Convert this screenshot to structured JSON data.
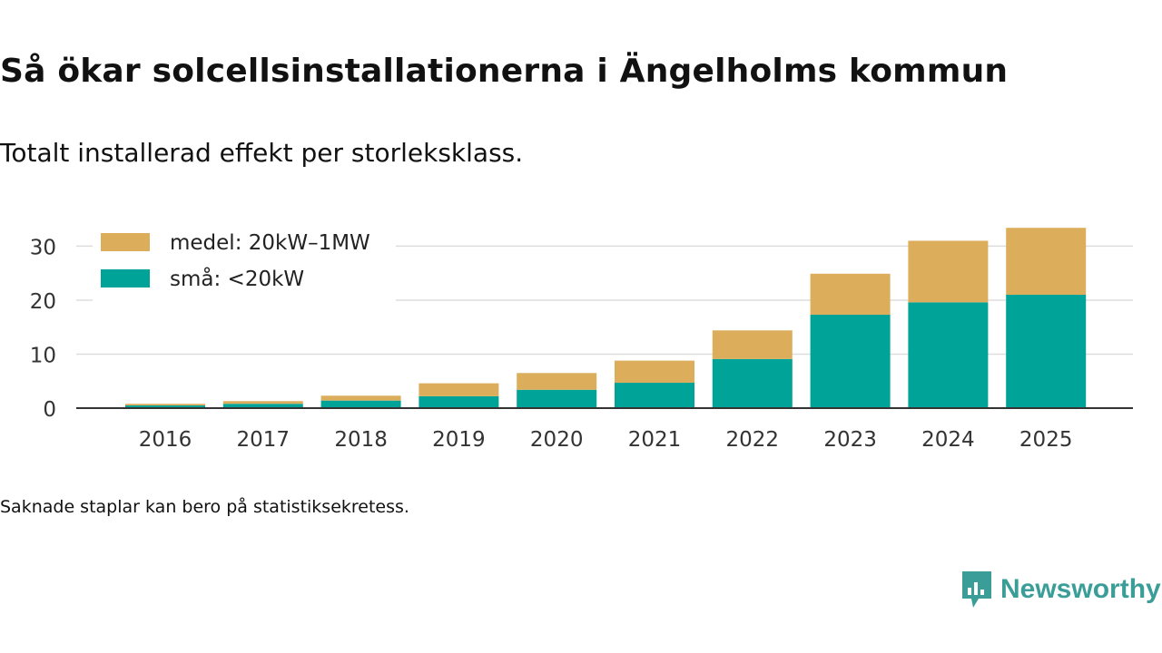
{
  "header": {
    "title": "Så ökar solcellsinstallationerna i Ängelholms kommun",
    "subtitle": "Totalt installerad effekt per storleksklass."
  },
  "footer": {
    "note": "Saknade staplar kan bero på statistiksekretess.",
    "brand": "Newsworthy"
  },
  "colors": {
    "medel": "#dcae5c",
    "sma": "#00a398",
    "grid": "#dddddd",
    "axis": "#333333",
    "brand": "#3a9d98"
  },
  "chart_data": {
    "type": "bar",
    "stacked": true,
    "title": "Så ökar solcellsinstallationerna i Ängelholms kommun",
    "subtitle": "Totalt installerad effekt per storleksklass.",
    "xlabel": "",
    "ylabel": "",
    "categories": [
      "2016",
      "2017",
      "2018",
      "2019",
      "2020",
      "2021",
      "2022",
      "2023",
      "2024",
      "2025"
    ],
    "series": [
      {
        "name": "små: <20kW",
        "values": [
          0.5,
          0.8,
          1.4,
          2.2,
          3.4,
          4.7,
          9.1,
          17.3,
          19.6,
          21.0
        ]
      },
      {
        "name": "medel: 20kW–1MW",
        "values": [
          0.3,
          0.5,
          0.9,
          2.4,
          3.1,
          4.1,
          5.3,
          7.6,
          11.4,
          12.4
        ]
      }
    ],
    "ylim": [
      0,
      33.6
    ],
    "yticks": [
      0,
      10,
      20,
      30
    ],
    "grid": true,
    "legend": {
      "position": "top-left",
      "entries": [
        "medel: 20kW–1MW",
        "små: <20kW"
      ]
    }
  }
}
